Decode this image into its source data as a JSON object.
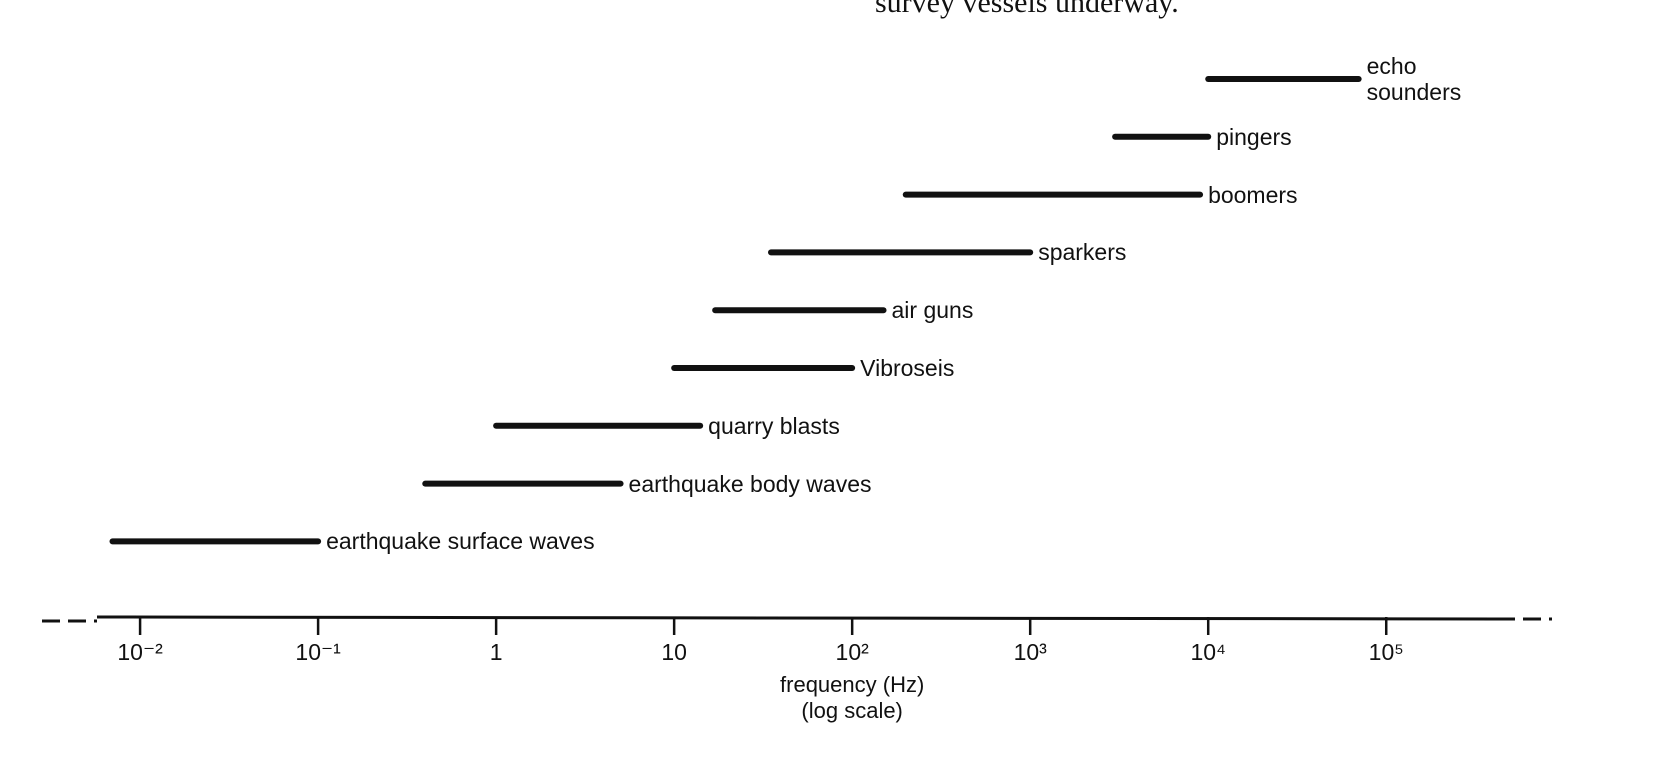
{
  "header_text": "survey vessels underway.",
  "chart_data": {
    "type": "range_bar",
    "categories": [
      "echo\nsounders",
      "pingers",
      "boomers",
      "sparkers",
      "air guns",
      "Vibroseis",
      "quarry blasts",
      "earthquake body waves",
      "earthquake surface waves"
    ],
    "low": [
      10000,
      3000,
      200,
      35,
      17,
      10,
      1,
      0.4,
      0.007
    ],
    "high": [
      70000,
      10000,
      9000,
      1000,
      150,
      100,
      14,
      5,
      0.1
    ],
    "color": "#111111",
    "x_label": "frequency (Hz)\n(log scale)",
    "xscale": "log",
    "xlim": [
      0.003,
      800000
    ],
    "xticks": [
      {
        "value": 0.01,
        "label": "10⁻²"
      },
      {
        "value": 0.1,
        "label": "10⁻¹"
      },
      1,
      10,
      {
        "value": 100,
        "label": "10²"
      },
      {
        "value": 1000,
        "label": "10³"
      },
      {
        "value": 10000,
        "label": "10⁴"
      },
      {
        "value": 100000,
        "label": "10⁵"
      }
    ]
  }
}
